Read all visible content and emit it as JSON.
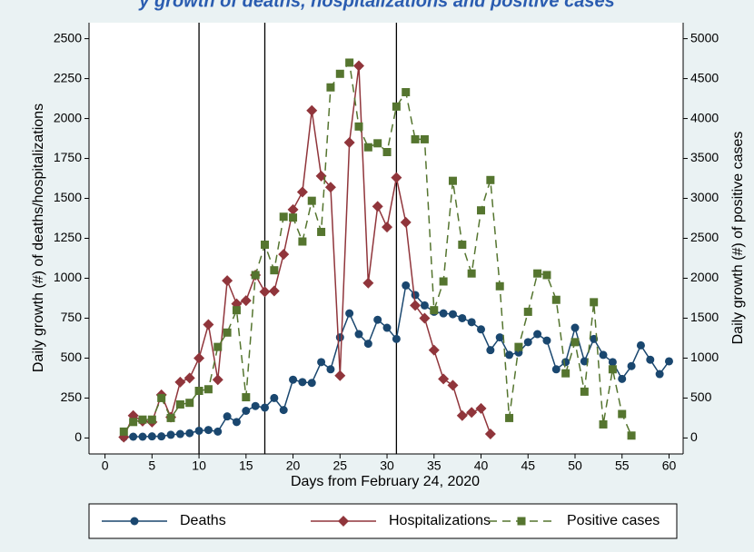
{
  "chart_data": {
    "type": "line",
    "title": "y growth of deaths, hospitalizations and positive cases",
    "x_label": "Days from February 24, 2020",
    "y_label": "Daily growth (#) of deaths/hospitalizations",
    "y2_label": "Daily growth (#) of positive cases",
    "xlim": [
      -1.7,
      61.5
    ],
    "xticks": [
      0,
      5,
      10,
      15,
      20,
      25,
      30,
      35,
      40,
      45,
      50,
      55,
      60
    ],
    "ylim": [
      -100,
      2600
    ],
    "yticks": [
      0,
      250,
      500,
      750,
      1000,
      1250,
      1500,
      1750,
      2000,
      2250,
      2500
    ],
    "y2lim": [
      -200,
      5200
    ],
    "y2ticks": [
      0,
      500,
      1000,
      1500,
      2000,
      2500,
      3000,
      3500,
      4000,
      4500,
      5000
    ],
    "vlines": [
      10,
      17,
      31
    ],
    "series": [
      {
        "name": "Deaths",
        "color": "#1a476f",
        "marker": "circle",
        "dash": false,
        "x": [
          2,
          3,
          4,
          5,
          6,
          7,
          8,
          9,
          10,
          11,
          12,
          13,
          14,
          15,
          16,
          17,
          18,
          19,
          20,
          21,
          22,
          23,
          24,
          25,
          26,
          27,
          28,
          29,
          30,
          31,
          32,
          33,
          34,
          35,
          36,
          37,
          38,
          39,
          40,
          41,
          42,
          43,
          44,
          45,
          46,
          47,
          48,
          49,
          50,
          51,
          52,
          53,
          54,
          55,
          56,
          57,
          58,
          59,
          60
        ],
        "values": [
          5,
          8,
          8,
          10,
          10,
          20,
          25,
          30,
          45,
          50,
          40,
          135,
          100,
          170,
          200,
          190,
          250,
          175,
          365,
          350,
          345,
          475,
          430,
          630,
          780,
          650,
          590,
          740,
          690,
          620,
          955,
          895,
          830,
          790,
          780,
          775,
          750,
          725,
          680,
          550,
          630,
          520,
          535,
          600,
          650,
          610,
          430,
          475,
          690,
          480,
          620,
          520,
          475,
          370,
          450,
          580,
          490,
          400,
          480
        ]
      },
      {
        "name": "Hospitalizations",
        "color": "#90353b",
        "marker": "diamond",
        "dash": false,
        "x": [
          2,
          3,
          4,
          5,
          6,
          7,
          8,
          9,
          10,
          11,
          12,
          13,
          14,
          15,
          16,
          17,
          18,
          19,
          20,
          21,
          22,
          23,
          24,
          25,
          26,
          27,
          28,
          29,
          30,
          31,
          32,
          33,
          34,
          35,
          36,
          37,
          38,
          39,
          40,
          41
        ],
        "values": [
          5,
          140,
          105,
          100,
          270,
          130,
          350,
          375,
          500,
          710,
          365,
          985,
          840,
          860,
          1020,
          915,
          920,
          1150,
          1430,
          1540,
          2050,
          1640,
          1570,
          390,
          1850,
          2330,
          970,
          1450,
          1320,
          1630,
          1350,
          830,
          750,
          550,
          370,
          330,
          140,
          160,
          185,
          25
        ]
      },
      {
        "name": "Positive cases",
        "color": "#55752f",
        "marker": "square",
        "dash": true,
        "axis": "y2",
        "x": [
          2,
          3,
          4,
          5,
          6,
          7,
          8,
          9,
          10,
          11,
          12,
          13,
          14,
          15,
          16,
          17,
          18,
          19,
          20,
          21,
          22,
          23,
          24,
          25,
          26,
          27,
          28,
          29,
          30,
          31,
          32,
          33,
          34,
          35,
          36,
          37,
          38,
          39,
          40,
          41,
          42,
          43,
          44,
          45,
          46,
          47,
          48,
          49,
          50,
          51,
          52,
          53,
          54,
          55,
          56
        ],
        "values": [
          80,
          200,
          230,
          230,
          500,
          250,
          420,
          440,
          590,
          610,
          1140,
          1320,
          1600,
          510,
          2040,
          2420,
          2100,
          2770,
          2760,
          2460,
          2970,
          2580,
          4390,
          4560,
          4700,
          3900,
          3640,
          3690,
          3580,
          4150,
          4330,
          3740,
          3740,
          1600,
          1960,
          3220,
          2420,
          2060,
          2850,
          3230,
          1900,
          250,
          1140,
          1580,
          2060,
          2040,
          1730,
          810,
          1200,
          580,
          1700,
          170,
          860,
          300,
          30
        ]
      }
    ]
  }
}
